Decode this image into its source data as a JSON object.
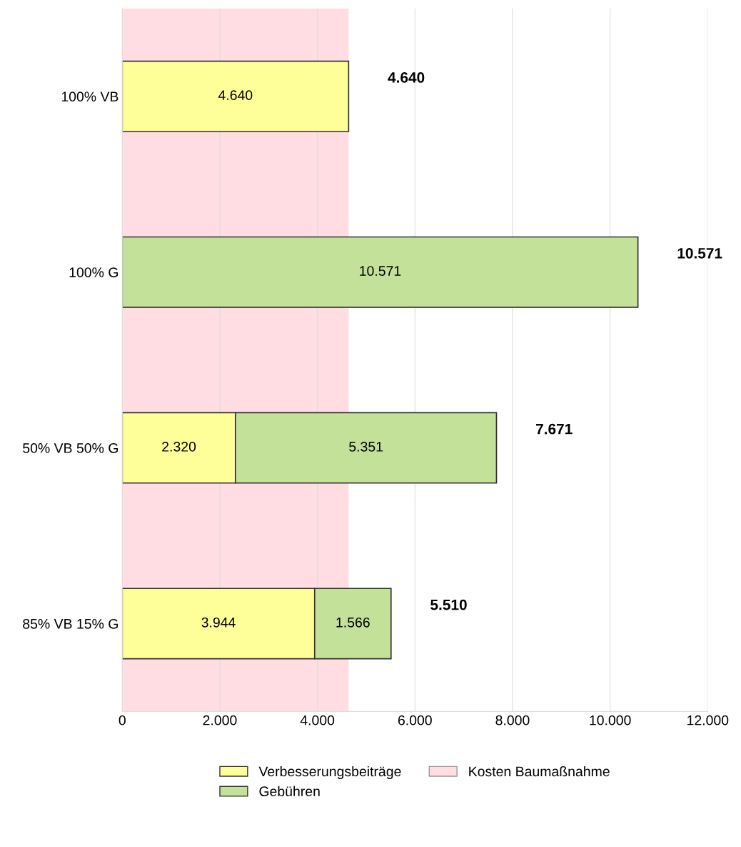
{
  "chart_data": {
    "type": "bar",
    "orientation": "horizontal",
    "stacked": true,
    "categories": [
      "100% VB",
      "100% G",
      "50% VB 50% G",
      "85% VB 15% G"
    ],
    "series": [
      {
        "name": "Verbesserungsbeiträge",
        "color": "#ffff99",
        "values": [
          4640,
          null,
          2320,
          3944
        ],
        "value_labels": [
          "4.640",
          null,
          "2.320",
          "3.944"
        ]
      },
      {
        "name": "Gebühren",
        "color": "#c4e19a",
        "values": [
          null,
          10571,
          5351,
          1566
        ],
        "value_labels": [
          null,
          "10.571",
          "5.351",
          "1.566"
        ]
      }
    ],
    "totals": [
      "4.640",
      "10.571",
      "7.671",
      "5.510"
    ],
    "bands": [
      {
        "axis": "x",
        "from": 0,
        "to": 4640,
        "label": "Kosten Baumaßnahme",
        "color": "#ffdde2"
      }
    ],
    "xlim": [
      0,
      12000
    ],
    "xticks": [
      0,
      {
        "value": 2000,
        "label": "2.000"
      },
      {
        "value": 4000,
        "label": "4.000"
      },
      {
        "value": 6000,
        "label": "6.000"
      },
      {
        "value": 8000,
        "label": "8.000"
      },
      {
        "value": 10000,
        "label": "10.000"
      },
      {
        "value": 12000,
        "label": "12.000"
      }
    ],
    "grid": "x",
    "legend": "bottom"
  }
}
